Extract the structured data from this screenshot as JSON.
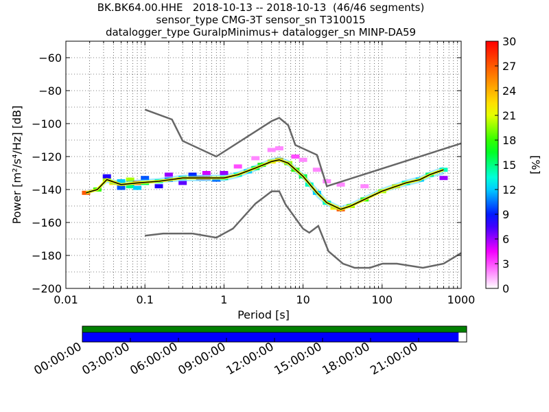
{
  "chart_data": [
    {
      "type": "heatmap",
      "title_lines": [
        "BK.BK64.00.HHE   2018-10-13 -- 2018-10-13  (46/46 segments)",
        "sensor_type CMG-3T sensor_sn T310015",
        "datalogger_type GuralpMinimus+ datalogger_sn MINP-DA59"
      ],
      "xlabel": "Period [s]",
      "ylabel": "Power [m²/s⁴/Hz] [dB]",
      "x_scale": "log",
      "xlim": [
        0.01,
        1000
      ],
      "ylim": [
        -200,
        -50
      ],
      "x_ticks": [
        0.01,
        0.1,
        1,
        10,
        100,
        1000
      ],
      "x_tick_labels": [
        "0.01",
        "0.1",
        "1",
        "10",
        "100",
        "1000"
      ],
      "y_ticks": [
        -60,
        -80,
        -100,
        -120,
        -140,
        -160,
        -180,
        -200
      ],
      "y_tick_labels": [
        "−60",
        "−80",
        "−100",
        "−120",
        "−140",
        "−160",
        "−180",
        "−200"
      ],
      "grid": "dotted",
      "colorbar": {
        "label": "[%]",
        "range": [
          0,
          30
        ],
        "ticks": [
          0,
          3,
          6,
          9,
          12,
          15,
          18,
          21,
          24,
          27,
          30
        ],
        "tick_labels": [
          "0",
          "3",
          "6",
          "9",
          "12",
          "15",
          "18",
          "21",
          "24",
          "27",
          "30"
        ],
        "colors": [
          "#ffffff",
          "#ff00ff",
          "#0000ff",
          "#00ffff",
          "#00ff00",
          "#ffff00",
          "#ff7f00",
          "#ff0000"
        ]
      },
      "noise_model_high": {
        "x": [
          0.1,
          0.22,
          0.3,
          0.8,
          4,
          5,
          6.5,
          8,
          15,
          20,
          1000
        ],
        "y": [
          -91.5,
          -97.5,
          -110.5,
          -120,
          -98.5,
          -96.5,
          -101,
          -113,
          -119,
          -138,
          -112
        ]
      },
      "noise_model_low": {
        "x": [
          0.1,
          0.17,
          0.4,
          0.8,
          1.3,
          2.5,
          4,
          5,
          6,
          10,
          12,
          15.6,
          21,
          32,
          45,
          70,
          101,
          154,
          328,
          600,
          1000
        ],
        "y": [
          -168,
          -166.7,
          -166.7,
          -169.2,
          -163.7,
          -148.6,
          -141.1,
          -141.1,
          -149,
          -163.8,
          -166.2,
          -162.1,
          -177.5,
          -185,
          -187.5,
          -187.5,
          -185,
          -185,
          -187.5,
          -185,
          -178.5
        ]
      },
      "mean_psd": {
        "x": [
          0.018,
          0.025,
          0.033,
          0.05,
          0.08,
          0.15,
          0.3,
          0.6,
          1,
          1.5,
          2.5,
          4,
          5,
          6.5,
          10,
          15,
          20,
          30,
          40,
          60,
          100,
          200,
          300,
          400,
          600
        ],
        "y": [
          -142,
          -140,
          -134,
          -137,
          -136,
          -135,
          -133,
          -133,
          -133,
          -131,
          -127,
          -123,
          -122,
          -124,
          -132,
          -142,
          -148,
          -152,
          -150,
          -146,
          -141,
          -136,
          -134,
          -131,
          -128
        ]
      },
      "percentile_band_low": {
        "x": [
          0.018,
          0.025,
          0.033,
          0.05,
          0.08,
          0.15,
          0.3,
          0.6,
          1,
          1.5,
          2.5,
          4,
          5,
          6.5,
          10,
          15,
          20,
          30,
          40,
          60,
          100,
          200,
          300,
          400,
          600
        ],
        "y": [
          -143,
          -141,
          -136,
          -138,
          -137,
          -136,
          -135,
          -135,
          -135,
          -133,
          -129,
          -124,
          -123,
          -126,
          -134,
          -145,
          -150,
          -153,
          -151,
          -147,
          -142,
          -138,
          -136,
          -133,
          -131
        ]
      },
      "percentile_band_high": {
        "x": [
          0.018,
          0.025,
          0.033,
          0.05,
          0.08,
          0.15,
          0.3,
          0.6,
          1,
          1.5,
          2.5,
          4,
          5,
          6.5,
          10,
          15,
          20,
          30,
          40,
          60,
          100,
          200,
          300,
          400,
          600
        ],
        "y": [
          -141,
          -139,
          -133,
          -135,
          -134,
          -133,
          -131,
          -131,
          -131,
          -129,
          -125,
          -121,
          -120,
          -122,
          -130,
          -139,
          -146,
          -150,
          -148,
          -144,
          -139,
          -134,
          -132,
          -129,
          -126
        ]
      },
      "psd_bins": [
        {
          "x": 0.018,
          "y": -142,
          "pct": 27
        },
        {
          "x": 0.025,
          "y": -140,
          "pct": 18
        },
        {
          "x": 0.033,
          "y": -134,
          "pct": 20
        },
        {
          "x": 0.033,
          "y": -132,
          "pct": 8
        },
        {
          "x": 0.04,
          "y": -136,
          "pct": 22
        },
        {
          "x": 0.05,
          "y": -137,
          "pct": 25
        },
        {
          "x": 0.05,
          "y": -135,
          "pct": 12
        },
        {
          "x": 0.05,
          "y": -139,
          "pct": 10
        },
        {
          "x": 0.065,
          "y": -138,
          "pct": 15
        },
        {
          "x": 0.065,
          "y": -134,
          "pct": 20
        },
        {
          "x": 0.08,
          "y": -136,
          "pct": 28
        },
        {
          "x": 0.08,
          "y": -139,
          "pct": 12
        },
        {
          "x": 0.1,
          "y": -136,
          "pct": 16
        },
        {
          "x": 0.1,
          "y": -133,
          "pct": 10
        },
        {
          "x": 0.15,
          "y": -135,
          "pct": 14
        },
        {
          "x": 0.15,
          "y": -138,
          "pct": 8
        },
        {
          "x": 0.2,
          "y": -134,
          "pct": 10
        },
        {
          "x": 0.2,
          "y": -131,
          "pct": 6
        },
        {
          "x": 0.3,
          "y": -133,
          "pct": 12
        },
        {
          "x": 0.3,
          "y": -136,
          "pct": 7
        },
        {
          "x": 0.4,
          "y": -131,
          "pct": 9
        },
        {
          "x": 0.5,
          "y": -133,
          "pct": 8
        },
        {
          "x": 0.6,
          "y": -133,
          "pct": 7
        },
        {
          "x": 0.6,
          "y": -130,
          "pct": 5
        },
        {
          "x": 0.8,
          "y": -134,
          "pct": 10
        },
        {
          "x": 1,
          "y": -133,
          "pct": 15
        },
        {
          "x": 1,
          "y": -130,
          "pct": 6
        },
        {
          "x": 1.5,
          "y": -131,
          "pct": 14
        },
        {
          "x": 1.5,
          "y": -126,
          "pct": 3
        },
        {
          "x": 2,
          "y": -129,
          "pct": 12
        },
        {
          "x": 2.5,
          "y": -127,
          "pct": 16
        },
        {
          "x": 2.5,
          "y": -121,
          "pct": 2
        },
        {
          "x": 3,
          "y": -125,
          "pct": 18
        },
        {
          "x": 4,
          "y": -123,
          "pct": 22
        },
        {
          "x": 4,
          "y": -116,
          "pct": 2
        },
        {
          "x": 5,
          "y": -122,
          "pct": 24
        },
        {
          "x": 5,
          "y": -115,
          "pct": 2
        },
        {
          "x": 6.5,
          "y": -124,
          "pct": 20
        },
        {
          "x": 8,
          "y": -128,
          "pct": 18
        },
        {
          "x": 8,
          "y": -120,
          "pct": 3
        },
        {
          "x": 10,
          "y": -132,
          "pct": 16
        },
        {
          "x": 10,
          "y": -122,
          "pct": 2
        },
        {
          "x": 12,
          "y": -137,
          "pct": 14
        },
        {
          "x": 15,
          "y": -142,
          "pct": 12
        },
        {
          "x": 15,
          "y": -128,
          "pct": 2
        },
        {
          "x": 20,
          "y": -148,
          "pct": 14
        },
        {
          "x": 20,
          "y": -135,
          "pct": 2
        },
        {
          "x": 25,
          "y": -151,
          "pct": 22
        },
        {
          "x": 30,
          "y": -152,
          "pct": 27
        },
        {
          "x": 30,
          "y": -137,
          "pct": 2
        },
        {
          "x": 40,
          "y": -150,
          "pct": 20
        },
        {
          "x": 60,
          "y": -146,
          "pct": 18
        },
        {
          "x": 60,
          "y": -138,
          "pct": 2
        },
        {
          "x": 100,
          "y": -141,
          "pct": 20
        },
        {
          "x": 150,
          "y": -138,
          "pct": 22
        },
        {
          "x": 200,
          "y": -136,
          "pct": 14
        },
        {
          "x": 300,
          "y": -134,
          "pct": 12
        },
        {
          "x": 400,
          "y": -131,
          "pct": 16
        },
        {
          "x": 600,
          "y": -128,
          "pct": 14
        },
        {
          "x": 600,
          "y": -133,
          "pct": 6
        }
      ]
    },
    {
      "type": "timeline",
      "description_free": true,
      "segments_present_fraction": [
        0,
        0.979
      ],
      "top_bar_color": "#008000",
      "bottom_bar_color": "#0000ff",
      "tick_labels": [
        "00:00:00",
        "03:00:00",
        "06:00:00",
        "09:00:00",
        "12:00:00",
        "15:00:00",
        "18:00:00",
        "21:00:00"
      ]
    }
  ]
}
